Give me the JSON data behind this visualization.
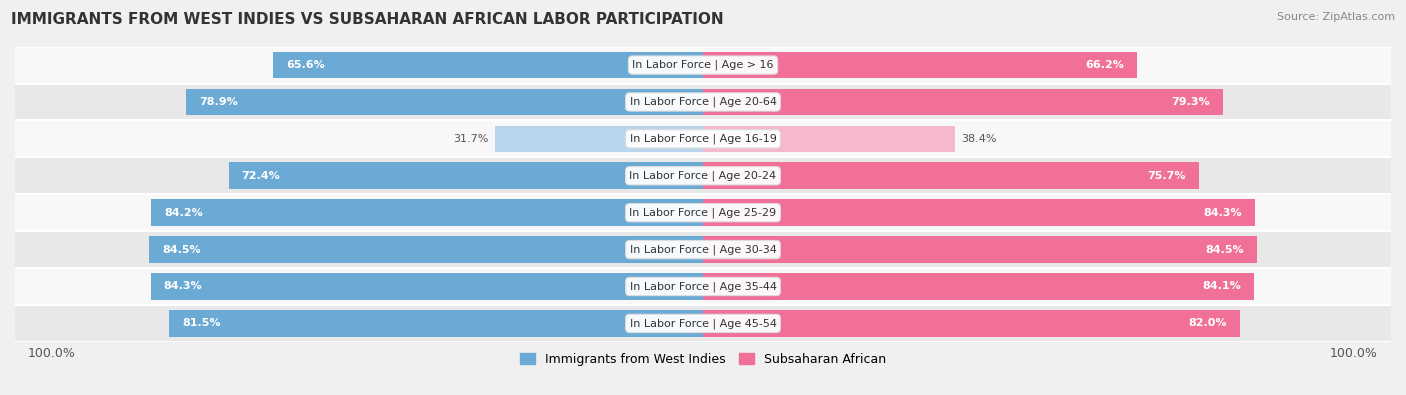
{
  "title": "IMMIGRANTS FROM WEST INDIES VS SUBSAHARAN AFRICAN LABOR PARTICIPATION",
  "source": "Source: ZipAtlas.com",
  "categories": [
    "In Labor Force | Age > 16",
    "In Labor Force | Age 20-64",
    "In Labor Force | Age 16-19",
    "In Labor Force | Age 20-24",
    "In Labor Force | Age 25-29",
    "In Labor Force | Age 30-34",
    "In Labor Force | Age 35-44",
    "In Labor Force | Age 45-54"
  ],
  "west_indies": [
    65.6,
    78.9,
    31.7,
    72.4,
    84.2,
    84.5,
    84.3,
    81.5
  ],
  "subsaharan": [
    66.2,
    79.3,
    38.4,
    75.7,
    84.3,
    84.5,
    84.1,
    82.0
  ],
  "west_indies_color": "#6aaad4",
  "subsaharan_color": "#f07098",
  "west_indies_light_color": "#b8d5ed",
  "subsaharan_light_color": "#f5b8cc",
  "background_color": "#f0f0f0",
  "row_color_odd": "#e8e8e8",
  "row_color_even": "#f8f8f8",
  "max_val": 100.0,
  "legend_west_indies": "Immigrants from West Indies",
  "legend_subsaharan": "Subsaharan African",
  "title_fontsize": 11,
  "source_fontsize": 8,
  "label_fontsize": 8,
  "cat_fontsize": 8
}
